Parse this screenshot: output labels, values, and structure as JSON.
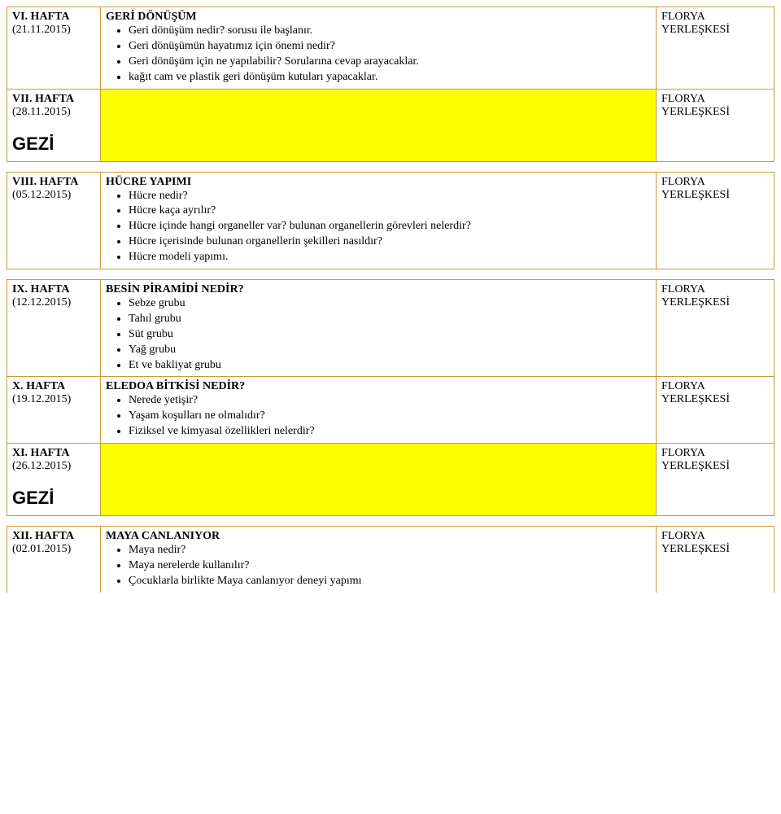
{
  "colors": {
    "border": "#cc9933",
    "highlight": "#ffff00",
    "page_bg": "#ffffff",
    "text": "#000000"
  },
  "typography": {
    "body_font": "Times New Roman",
    "body_size_pt": 11,
    "gezi_font": "Arial",
    "gezi_size_pt": 16,
    "gezi_weight": "bold"
  },
  "location": {
    "l1": "FLORYA",
    "l2": "YERLEŞKESİ"
  },
  "weeks": {
    "w6": {
      "label": "VI. HAFTA",
      "date": "(21.11.2015)"
    },
    "w7": {
      "label": "VII. HAFTA",
      "date": "(28.11.2015)"
    },
    "w8": {
      "label": "VIII. HAFTA",
      "date": "(05.12.2015)"
    },
    "w9": {
      "label": "IX. HAFTA",
      "date": "(12.12.2015)"
    },
    "w10": {
      "label": "X. HAFTA",
      "date": "(19.12.2015)"
    },
    "w11": {
      "label": "XI. HAFTA",
      "date": "(26.12.2015)"
    },
    "w12": {
      "label": "XII. HAFTA",
      "date": "(02.01.2015)"
    }
  },
  "gezi": "GEZİ",
  "content": {
    "w6": {
      "title": "GERİ DÖNÜŞÜM",
      "items": [
        "Geri dönüşüm nedir? sorusu ile başlanır.",
        "Geri dönüşümün hayatımız için önemi nedir?",
        "Geri dönüşüm için ne yapılabilir? Sorularına cevap arayacaklar.",
        "kağıt cam ve plastik geri dönüşüm kutuları yapacaklar."
      ]
    },
    "w8": {
      "title": "HÜCRE YAPIMI",
      "items": [
        "Hücre nedir?",
        "Hücre kaça ayrılır?",
        "Hücre içinde hangi organeller var? bulunan organellerin görevleri nelerdir?",
        "Hücre içerisinde bulunan organellerin şekilleri nasıldır?",
        "Hücre modeli yapımı."
      ]
    },
    "w9": {
      "title": "BESİN PİRAMİDİ NEDİR?",
      "items": [
        "Sebze grubu",
        "Tahıl grubu",
        "Süt grubu",
        "Yağ grubu",
        "Et ve bakliyat grubu"
      ]
    },
    "w10": {
      "title": "ELEDOA BİTKİSİ NEDİR?",
      "items": [
        "Nerede yetişir?",
        "Yaşam koşulları ne olmalıdır?",
        "Fiziksel ve kimyasal özellikleri nelerdir?"
      ]
    },
    "w12": {
      "title": "MAYA CANLANIYOR",
      "items": [
        "Maya nedir?",
        "Maya nerelerde kullanılır?",
        "Çocuklarla birlikte Maya canlanıyor deneyi yapımı"
      ]
    }
  }
}
